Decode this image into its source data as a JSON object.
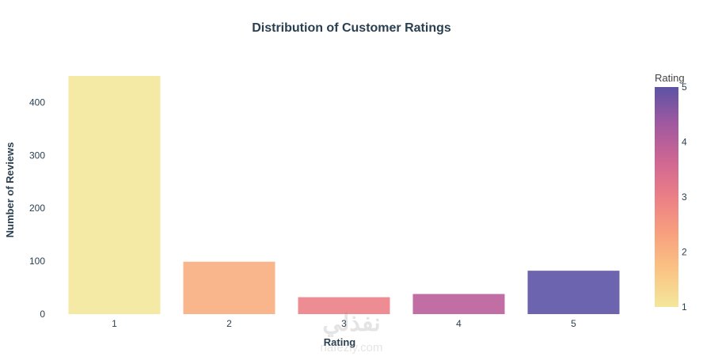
{
  "chart_data": {
    "type": "bar",
    "title": "Distribution of Customer Ratings",
    "xlabel": "Rating",
    "ylabel": "Number of Reviews",
    "categories": [
      "1",
      "2",
      "3",
      "4",
      "5"
    ],
    "values": [
      450,
      99,
      32,
      38,
      82
    ],
    "ylim": [
      0,
      450
    ],
    "yticks": [
      0,
      100,
      200,
      300,
      400
    ],
    "grid": false,
    "bar_colors": [
      "#f3e79b",
      "#f8ae80",
      "#eb7f86",
      "#b95e9a",
      "#5c53a5"
    ],
    "colorbar": {
      "title": "Rating",
      "ticks": [
        "1",
        "2",
        "3",
        "4",
        "5"
      ],
      "range": [
        1,
        5
      ],
      "colors": [
        "#f3e79b",
        "#fac484",
        "#f8a07e",
        "#eb7f86",
        "#ce6693",
        "#a059a0",
        "#5c53a5"
      ]
    }
  },
  "watermark": {
    "text": "nafezly.com",
    "arabic": "نفذلي"
  }
}
